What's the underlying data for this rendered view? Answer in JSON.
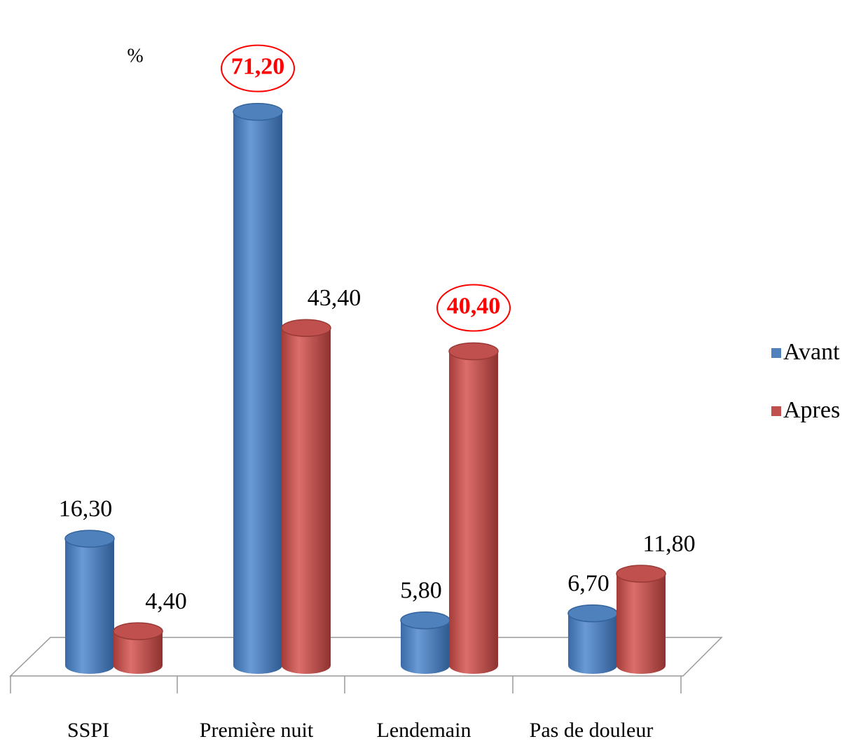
{
  "chart_data": {
    "type": "bar3d",
    "y_label": "%",
    "categories": [
      "SSPI",
      "Première nuit",
      "Lendemain",
      "Pas de douleur"
    ],
    "series": [
      {
        "name": "Avant",
        "color": "#4f81bd",
        "values": [
          16.3,
          71.2,
          5.8,
          6.7
        ],
        "value_labels": [
          "16,30",
          "71,20",
          "5,80",
          "6,70"
        ],
        "highlight": [
          false,
          true,
          false,
          false
        ]
      },
      {
        "name": "Apres",
        "color": "#c0504d",
        "values": [
          4.4,
          43.4,
          40.4,
          11.8
        ],
        "value_labels": [
          "4,40",
          "43,40",
          "40,40",
          "11,80"
        ],
        "highlight": [
          false,
          false,
          true,
          false
        ]
      }
    ],
    "highlight_color": "#ff0000",
    "legend": "right"
  }
}
